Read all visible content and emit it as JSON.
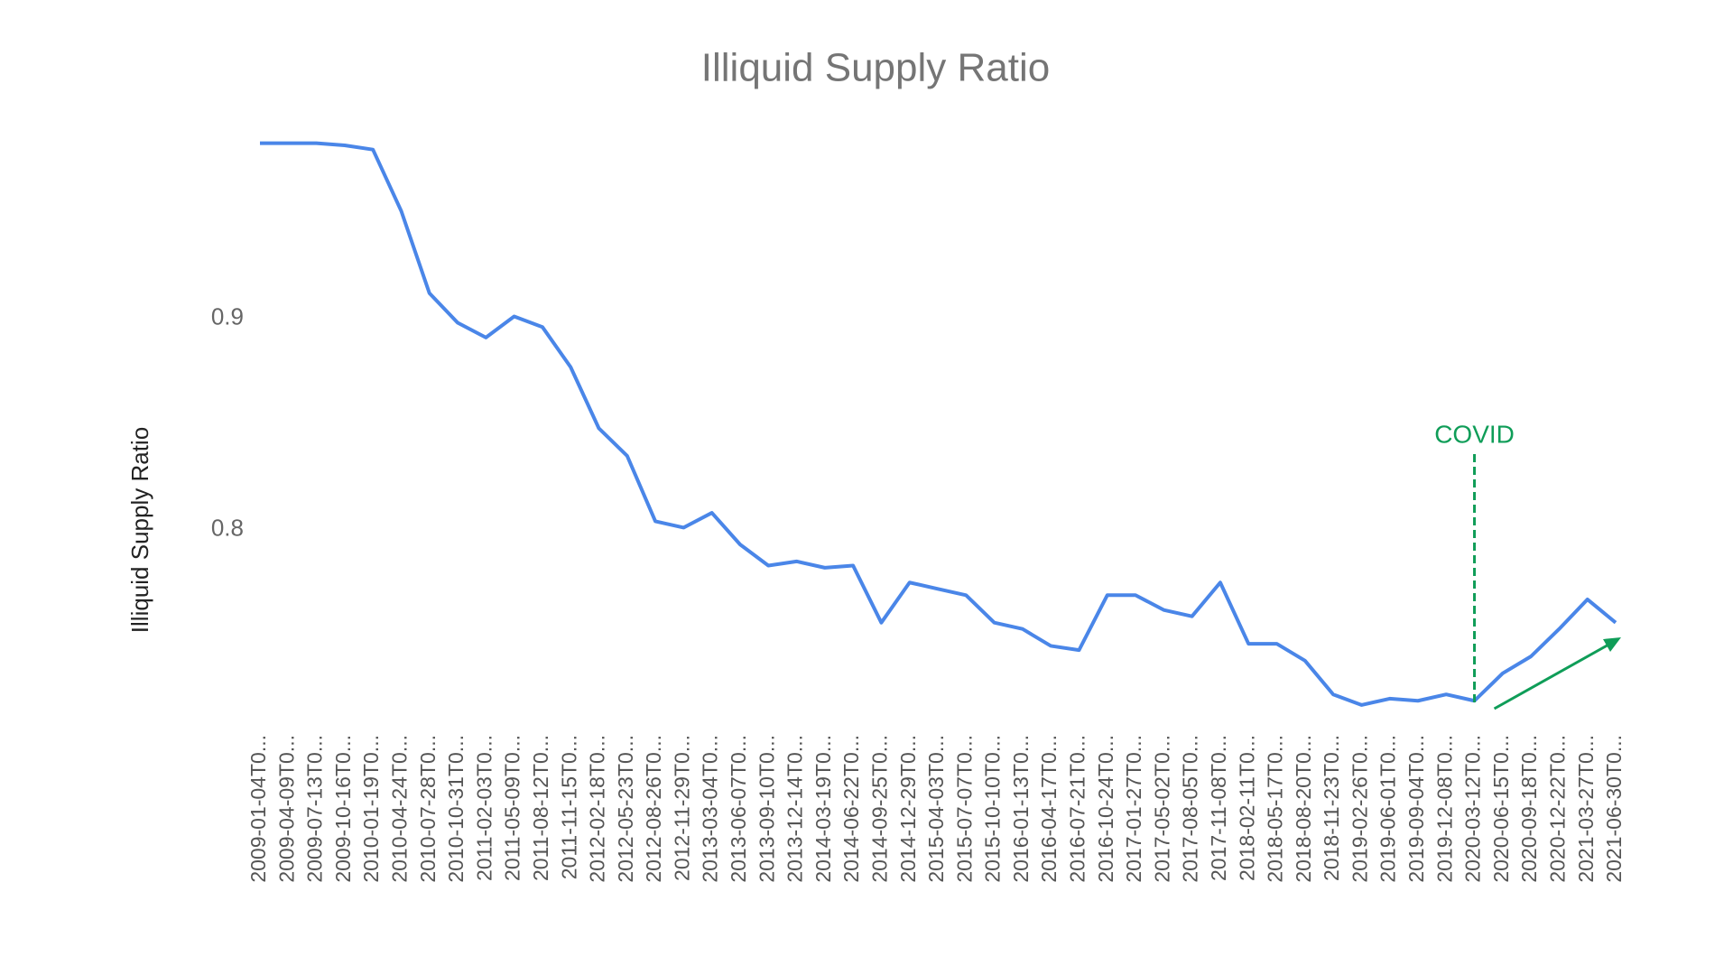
{
  "chart_data": {
    "type": "line",
    "title": "Illiquid Supply Ratio",
    "y_label": "Illiquid Supply Ratio",
    "categories": [
      "2009-01-04T0...",
      "2009-04-09T0...",
      "2009-07-13T0...",
      "2009-10-16T0...",
      "2010-01-19T0...",
      "2010-04-24T0...",
      "2010-07-28T0...",
      "2010-10-31T0...",
      "2011-02-03T0...",
      "2011-05-09T0...",
      "2011-08-12T0...",
      "2011-11-15T0...",
      "2012-02-18T0...",
      "2012-05-23T0...",
      "2012-08-26T0...",
      "2012-11-29T0...",
      "2013-03-04T0...",
      "2013-06-07T0...",
      "2013-09-10T0...",
      "2013-12-14T0...",
      "2014-03-19T0...",
      "2014-06-22T0...",
      "2014-09-25T0...",
      "2014-12-29T0...",
      "2015-04-03T0...",
      "2015-07-07T0...",
      "2015-10-10T0...",
      "2016-01-13T0...",
      "2016-04-17T0...",
      "2016-07-21T0...",
      "2016-10-24T0...",
      "2017-01-27T0...",
      "2017-05-02T0...",
      "2017-08-05T0...",
      "2017-11-08T0...",
      "2018-02-11T0...",
      "2018-05-17T0...",
      "2018-08-20T0...",
      "2018-11-23T0...",
      "2019-02-26T0...",
      "2019-06-01T0...",
      "2019-09-04T0...",
      "2019-12-08T0...",
      "2020-03-12T0...",
      "2020-06-15T0...",
      "2020-09-18T0...",
      "2020-12-22T0...",
      "2021-03-27T0...",
      "2021-06-30T0..."
    ],
    "series": [
      {
        "name": "Illiquid Supply Ratio",
        "color": "#4a86e8",
        "values": [
          0.983,
          0.983,
          0.983,
          0.982,
          0.98,
          0.951,
          0.912,
          0.898,
          0.891,
          0.901,
          0.896,
          0.877,
          0.848,
          0.835,
          0.804,
          0.801,
          0.808,
          0.793,
          0.783,
          0.785,
          0.782,
          0.783,
          0.756,
          0.775,
          0.772,
          0.769,
          0.756,
          0.753,
          0.745,
          0.743,
          0.769,
          0.769,
          0.762,
          0.759,
          0.775,
          0.746,
          0.746,
          0.738,
          0.722,
          0.717,
          0.72,
          0.719,
          0.722,
          0.719,
          0.732,
          0.74,
          0.753,
          0.767,
          0.756
        ]
      }
    ],
    "ylim": [
      0.705,
      0.985
    ],
    "yticks": [
      0.8,
      0.9
    ],
    "grid": false,
    "annotations": [
      {
        "text": "COVID",
        "x": "2020-03-12T0...",
        "color": "#0f9d58"
      }
    ]
  }
}
